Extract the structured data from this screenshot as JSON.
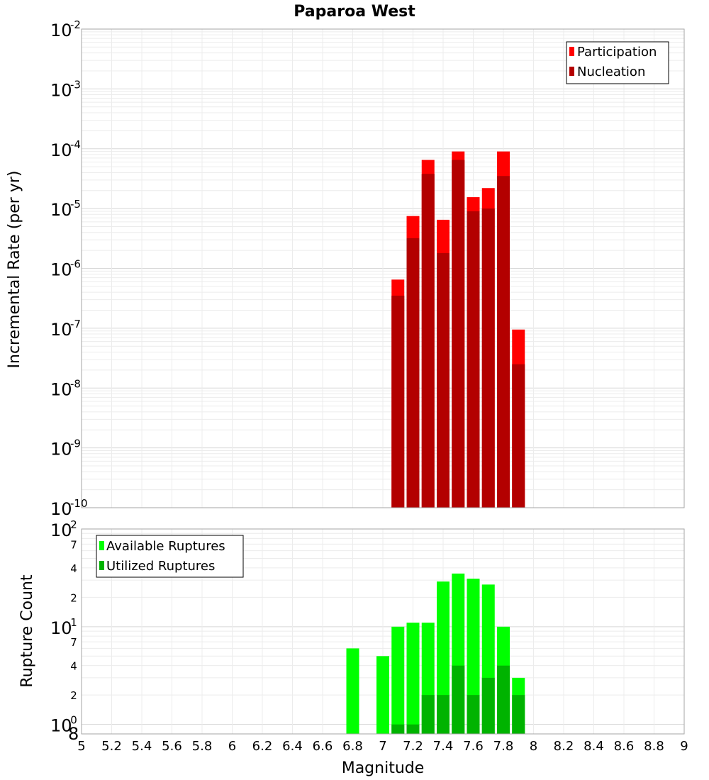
{
  "chart_data": [
    {
      "type": "bar",
      "title": "Paparoa West",
      "ylabel": "Incremental Rate (per yr)",
      "yscale": "log",
      "ylim": [
        1e-10,
        0.01
      ],
      "y_tick_labels": [
        {
          "base": "10",
          "exp": "-10"
        },
        {
          "base": "10",
          "exp": "-9"
        },
        {
          "base": "10",
          "exp": "-8"
        },
        {
          "base": "10",
          "exp": "-7"
        },
        {
          "base": "10",
          "exp": "-6"
        },
        {
          "base": "10",
          "exp": "-5"
        },
        {
          "base": "10",
          "exp": "-4"
        },
        {
          "base": "10",
          "exp": "-3"
        },
        {
          "base": "10",
          "exp": "-2"
        }
      ],
      "x": [
        7.1,
        7.2,
        7.3,
        7.4,
        7.5,
        7.6,
        7.7,
        7.8,
        7.9
      ],
      "series": [
        {
          "name": "Participation",
          "color": "#ff0000",
          "values": [
            6.5e-07,
            7.5e-06,
            6.5e-05,
            6.5e-06,
            9e-05,
            1.55e-05,
            2.2e-05,
            9e-05,
            9.5e-08
          ]
        },
        {
          "name": "Nucleation",
          "color": "#b30000",
          "values": [
            3.5e-07,
            3.2e-06,
            3.8e-05,
            1.8e-06,
            6.5e-05,
            9e-06,
            1e-05,
            3.5e-05,
            2.5e-08
          ]
        }
      ],
      "legend_position": "top-right"
    },
    {
      "type": "bar",
      "ylabel": "Rupture Count",
      "xlabel": "Magnitude",
      "yscale": "log",
      "ylim": [
        0.8,
        100
      ],
      "xlim": [
        5,
        9
      ],
      "x_tick_labels": [
        "5",
        "5.2",
        "5.4",
        "5.6",
        "5.8",
        "6",
        "6.2",
        "6.4",
        "6.6",
        "6.8",
        "7",
        "7.2",
        "7.4",
        "7.6",
        "7.8",
        "8",
        "8.2",
        "8.4",
        "8.6",
        "8.8",
        "9"
      ],
      "y_tick_labels": [
        {
          "value": 1,
          "base": "10",
          "exp": "0"
        },
        {
          "value": 2,
          "label": "2"
        },
        {
          "value": 4,
          "label": "4"
        },
        {
          "value": 7,
          "label": "7"
        },
        {
          "value": 10,
          "base": "10",
          "exp": "1"
        },
        {
          "value": 20,
          "label": "2"
        },
        {
          "value": 40,
          "label": "4"
        },
        {
          "value": 70,
          "label": "7"
        },
        {
          "value": 100,
          "base": "10",
          "exp": "2"
        }
      ],
      "y_bottom_label": "8",
      "x": [
        6.8,
        7.0,
        7.1,
        7.2,
        7.3,
        7.4,
        7.5,
        7.6,
        7.7,
        7.8,
        7.9
      ],
      "series": [
        {
          "name": "Available Ruptures",
          "color": "#00ff00",
          "values": [
            6,
            5,
            10,
            11,
            11,
            29,
            35,
            31,
            27,
            10,
            3
          ]
        },
        {
          "name": "Utilized Ruptures",
          "color": "#00b300",
          "values": [
            0,
            0,
            1,
            1,
            2,
            2,
            4,
            2,
            3,
            4,
            2
          ]
        }
      ],
      "legend_position": "top-left"
    }
  ]
}
